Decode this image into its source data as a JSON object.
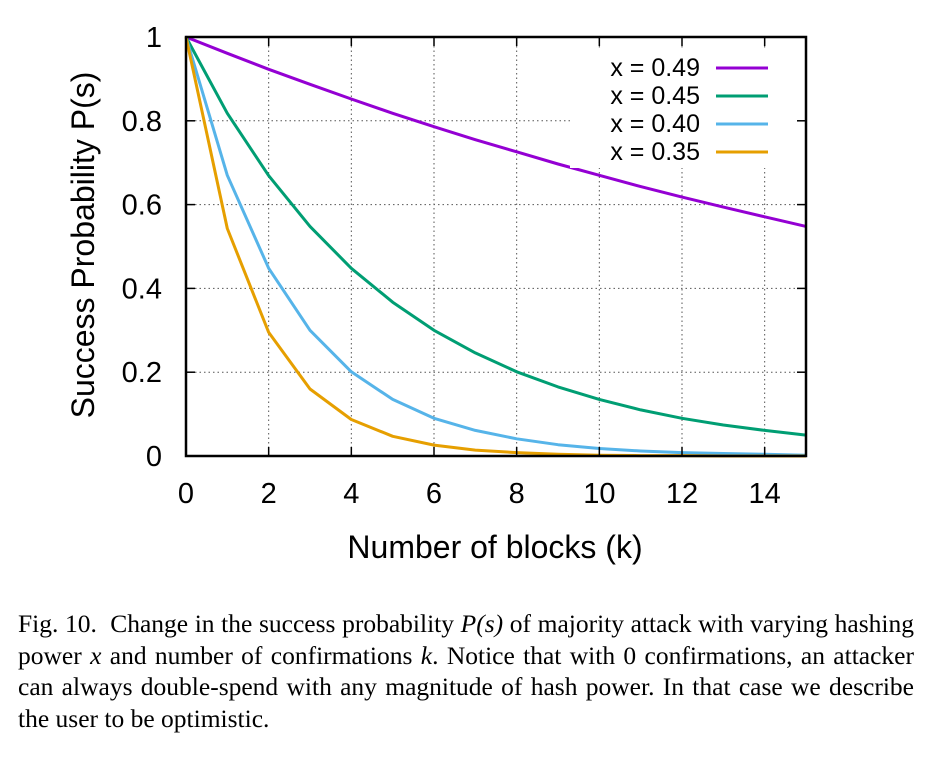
{
  "chart_data": {
    "type": "line",
    "xlabel": "Number of blocks (k)",
    "ylabel": "Success Probability P(s)",
    "xlim": [
      0,
      15
    ],
    "ylim": [
      0,
      1
    ],
    "xticks": [
      0,
      2,
      4,
      6,
      8,
      10,
      12,
      14
    ],
    "xtick_labels": [
      "0",
      "2",
      "4",
      "6",
      "8",
      "10",
      "12",
      "14"
    ],
    "yticks": [
      0,
      0.2,
      0.4,
      0.6,
      0.8,
      1
    ],
    "ytick_labels": [
      "0",
      "0.2",
      "0.4",
      "0.6",
      "0.8",
      "1"
    ],
    "grid": true,
    "legend_position": "top-right",
    "x": [
      0,
      1,
      2,
      3,
      4,
      5,
      6,
      7,
      8,
      9,
      10,
      11,
      12,
      13,
      14,
      15
    ],
    "series": [
      {
        "name": "x = 0.49",
        "color": "#9400d3",
        "values": [
          1.0,
          0.961,
          0.923,
          0.887,
          0.852,
          0.818,
          0.786,
          0.755,
          0.726,
          0.697,
          0.67,
          0.643,
          0.618,
          0.594,
          0.571,
          0.548
        ]
      },
      {
        "name": "x = 0.45",
        "color": "#009e73",
        "values": [
          1.0,
          0.818,
          0.669,
          0.548,
          0.448,
          0.367,
          0.3,
          0.246,
          0.201,
          0.165,
          0.135,
          0.11,
          0.09,
          0.074,
          0.061,
          0.05
        ]
      },
      {
        "name": "x = 0.40",
        "color": "#56b4e9",
        "values": [
          1.0,
          0.67,
          0.448,
          0.3,
          0.201,
          0.135,
          0.09,
          0.061,
          0.041,
          0.027,
          0.018,
          0.012,
          0.008,
          0.006,
          0.004,
          0.002
        ]
      },
      {
        "name": "x = 0.35",
        "color": "#e69f00",
        "values": [
          1.0,
          0.543,
          0.295,
          0.16,
          0.087,
          0.047,
          0.026,
          0.014,
          0.008,
          0.004,
          0.002,
          0.001,
          0.001,
          0.0,
          0.0,
          0.0
        ]
      }
    ]
  },
  "caption": {
    "label": "Fig. 10.",
    "part1": "Change in the success probability ",
    "math1": "P(s)",
    "part2": " of majority attack with varying hashing power ",
    "math2": "x",
    "part3": " and number of confirmations ",
    "math3": "k",
    "part4": ". Notice that with 0 confirmations, an attacker can always double-spend with any magnitude of hash power. In that case we describe the user to be optimistic."
  }
}
